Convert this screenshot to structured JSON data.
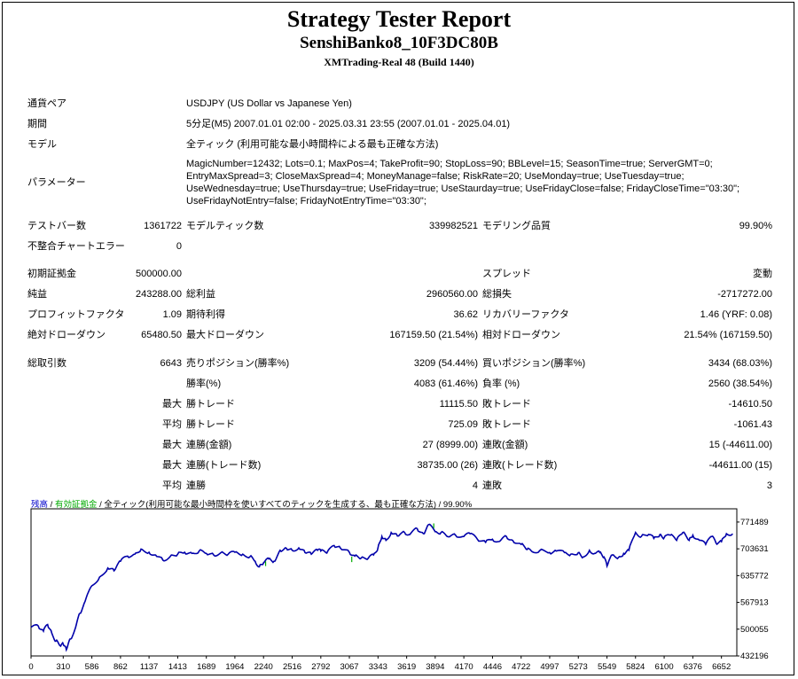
{
  "header": {
    "title": "Strategy Tester Report",
    "ea_name": "SenshiBanko8_10F3DC80B",
    "server": "XMTrading-Real 48 (Build 1440)"
  },
  "info": {
    "pair_label": "通貨ペア",
    "pair_value": "USDJPY (US Dollar vs Japanese Yen)",
    "period_label": "期間",
    "period_value": "5分足(M5) 2007.01.01 02:00 - 2025.03.31 23:55 (2007.01.01 - 2025.04.01)",
    "model_label": "モデル",
    "model_value": "全ティック (利用可能な最小時間枠による最も正確な方法)",
    "params_label": "パラメーター",
    "params_lines": [
      "MagicNumber=12432; Lots=0.1; MaxPos=4; TakeProfit=90; StopLoss=90; BBLevel=15; SeasonTime=true; ServerGMT=0;",
      "EntryMaxSpread=3; CloseMaxSpread=4; MoneyManage=false; RiskRate=20; UseMonday=true; UseTuesday=true;",
      "UseWednesday=true; UseThursday=true; UseFriday=true; UseStaurday=true; UseFridayClose=false; FridayCloseTime=\"03:30\";",
      "UseFridayNotEntry=false; FridayNotEntryTime=\"03:30\";"
    ]
  },
  "stats": {
    "test_bars_label": "テストバー数",
    "test_bars_value": "1361722",
    "model_ticks_label": "モデルティック数",
    "model_ticks_value": "339982521",
    "model_quality_label": "モデリング品質",
    "model_quality_value": "99.90%",
    "mismatch_label": "不整合チャートエラー",
    "mismatch_value": "0",
    "initial_deposit_label": "初期証拠金",
    "initial_deposit_value": "500000.00",
    "spread_label": "スプレッド",
    "spread_value": "変動",
    "net_profit_label": "純益",
    "net_profit_value": "243288.00",
    "gross_profit_label": "総利益",
    "gross_profit_value": "2960560.00",
    "gross_loss_label": "総損失",
    "gross_loss_value": "-2717272.00",
    "profit_factor_label": "プロフィットファクタ",
    "profit_factor_value": "1.09",
    "expected_payoff_label": "期待利得",
    "expected_payoff_value": "36.62",
    "recovery_factor_label": "リカバリーファクタ",
    "recovery_factor_value": "1.46 (YRF: 0.08)",
    "abs_dd_label": "絶対ドローダウン",
    "abs_dd_value": "65480.50",
    "max_dd_label": "最大ドローダウン",
    "max_dd_value": "167159.50 (21.54%)",
    "rel_dd_label": "相対ドローダウン",
    "rel_dd_value": "21.54% (167159.50)",
    "total_trades_label": "総取引数",
    "total_trades_value": "6643",
    "short_pos_label": "売りポジション(勝率%)",
    "short_pos_value": "3209 (54.44%)",
    "long_pos_label": "買いポジション(勝率%)",
    "long_pos_value": "3434 (68.03%)",
    "win_rate_label": "勝率(%)",
    "win_rate_value": "4083 (61.46%)",
    "loss_rate_label": "負率 (%)",
    "loss_rate_value": "2560 (38.54%)",
    "max_label": "最大",
    "avg_label": "平均",
    "win_trade_label": "勝トレード",
    "loss_trade_label": "敗トレード",
    "largest_win_value": "11115.50",
    "largest_loss_value": "-14610.50",
    "avg_win_value": "725.09",
    "avg_loss_value": "-1061.43",
    "consec_wins_amount_label": "連勝(金額)",
    "consec_wins_amount_value": "27 (8999.00)",
    "consec_losses_amount_label": "連敗(金額)",
    "consec_losses_amount_value": "15 (-44611.00)",
    "consec_wins_trades_label": "連勝(トレード数)",
    "consec_wins_trades_value": "38735.00 (26)",
    "consec_losses_trades_label": "連敗(トレード数)",
    "consec_losses_trades_value": "-44611.00 (15)",
    "avg_consec_wins_label": "連勝",
    "avg_consec_wins_value": "4",
    "avg_consec_losses_label": "連敗",
    "avg_consec_losses_value": "3"
  },
  "chart_data": {
    "type": "line",
    "legend_balance": "残高",
    "legend_separator": " / ",
    "legend_equity": "有効証拠金",
    "legend_rest": " / 全ティック(利用可能な最小時間枠を使いすべてのティックを生成する、最も正確な方法) / 99.90%",
    "colors": {
      "balance": "#0000aa",
      "equity": "#00aa00",
      "legend_balance": "#0000cc",
      "legend_equity": "#00aa00"
    },
    "ylim": [
      432196,
      805000
    ],
    "xlim": [
      0,
      6800
    ],
    "y_ticks": [
      "771489",
      "703631",
      "635772",
      "567913",
      "500055",
      "432196"
    ],
    "x_ticks": [
      "0",
      "310",
      "586",
      "862",
      "1137",
      "1413",
      "1689",
      "1964",
      "2240",
      "2516",
      "2792",
      "3067",
      "3343",
      "3619",
      "3894",
      "4170",
      "4446",
      "4722",
      "4997",
      "5273",
      "5549",
      "5824",
      "6100",
      "6376",
      "6652"
    ],
    "balance": [
      [
        0,
        505000
      ],
      [
        70,
        508000
      ],
      [
        120,
        495000
      ],
      [
        160,
        512000
      ],
      [
        200,
        490000
      ],
      [
        240,
        470000
      ],
      [
        280,
        458000
      ],
      [
        310,
        462000
      ],
      [
        340,
        448000
      ],
      [
        380,
        475000
      ],
      [
        430,
        505000
      ],
      [
        470,
        540000
      ],
      [
        520,
        570000
      ],
      [
        586,
        610000
      ],
      [
        660,
        632000
      ],
      [
        740,
        655000
      ],
      [
        800,
        648000
      ],
      [
        862,
        672000
      ],
      [
        930,
        685000
      ],
      [
        1000,
        690000
      ],
      [
        1060,
        703000
      ],
      [
        1137,
        695000
      ],
      [
        1200,
        688000
      ],
      [
        1270,
        675000
      ],
      [
        1340,
        684000
      ],
      [
        1413,
        690000
      ],
      [
        1480,
        695000
      ],
      [
        1550,
        692000
      ],
      [
        1620,
        698000
      ],
      [
        1689,
        692000
      ],
      [
        1760,
        688000
      ],
      [
        1830,
        694000
      ],
      [
        1900,
        690000
      ],
      [
        1964,
        695000
      ],
      [
        2040,
        690000
      ],
      [
        2110,
        684000
      ],
      [
        2160,
        672000
      ],
      [
        2200,
        658000
      ],
      [
        2240,
        668000
      ],
      [
        2290,
        678000
      ],
      [
        2340,
        672000
      ],
      [
        2400,
        700000
      ],
      [
        2460,
        705000
      ],
      [
        2516,
        700000
      ],
      [
        2580,
        706000
      ],
      [
        2640,
        694000
      ],
      [
        2700,
        690000
      ],
      [
        2760,
        700000
      ],
      [
        2792,
        698000
      ],
      [
        2850,
        693000
      ],
      [
        2920,
        712000
      ],
      [
        2980,
        706000
      ],
      [
        3067,
        695000
      ],
      [
        3120,
        685000
      ],
      [
        3180,
        680000
      ],
      [
        3250,
        680000
      ],
      [
        3300,
        688000
      ],
      [
        3343,
        706000
      ],
      [
        3380,
        735000
      ],
      [
        3420,
        725000
      ],
      [
        3470,
        745000
      ],
      [
        3530,
        736000
      ],
      [
        3600,
        745000
      ],
      [
        3650,
        740000
      ],
      [
        3720,
        755000
      ],
      [
        3780,
        742000
      ],
      [
        3830,
        765000
      ],
      [
        3894,
        747000
      ],
      [
        3950,
        745000
      ],
      [
        4020,
        734000
      ],
      [
        4090,
        738000
      ],
      [
        4170,
        735000
      ],
      [
        4230,
        742000
      ],
      [
        4300,
        728000
      ],
      [
        4380,
        720000
      ],
      [
        4446,
        728000
      ],
      [
        4510,
        722000
      ],
      [
        4580,
        735000
      ],
      [
        4640,
        725000
      ],
      [
        4722,
        715000
      ],
      [
        4780,
        702000
      ],
      [
        4830,
        696000
      ],
      [
        4900,
        699000
      ],
      [
        4997,
        694000
      ],
      [
        5060,
        698000
      ],
      [
        5140,
        694000
      ],
      [
        5200,
        690000
      ],
      [
        5273,
        694000
      ],
      [
        5320,
        683000
      ],
      [
        5380,
        700000
      ],
      [
        5430,
        692000
      ],
      [
        5480,
        694000
      ],
      [
        5520,
        683000
      ],
      [
        5549,
        660000
      ],
      [
        5600,
        688000
      ],
      [
        5660,
        682000
      ],
      [
        5710,
        692000
      ],
      [
        5760,
        700000
      ],
      [
        5824,
        745000
      ],
      [
        5880,
        735000
      ],
      [
        5950,
        740000
      ],
      [
        6000,
        730000
      ],
      [
        6060,
        740000
      ],
      [
        6100,
        732000
      ],
      [
        6160,
        738000
      ],
      [
        6220,
        725000
      ],
      [
        6280,
        745000
      ],
      [
        6340,
        725000
      ],
      [
        6376,
        738000
      ],
      [
        6440,
        725000
      ],
      [
        6500,
        715000
      ],
      [
        6560,
        735000
      ],
      [
        6600,
        718000
      ],
      [
        6652,
        722000
      ],
      [
        6700,
        742000
      ],
      [
        6760,
        742000
      ]
    ],
    "equity_spikes": [
      [
        2260,
        660000,
        672000
      ],
      [
        3090,
        670000,
        684000
      ],
      [
        3880,
        756000,
        768000
      ]
    ]
  }
}
